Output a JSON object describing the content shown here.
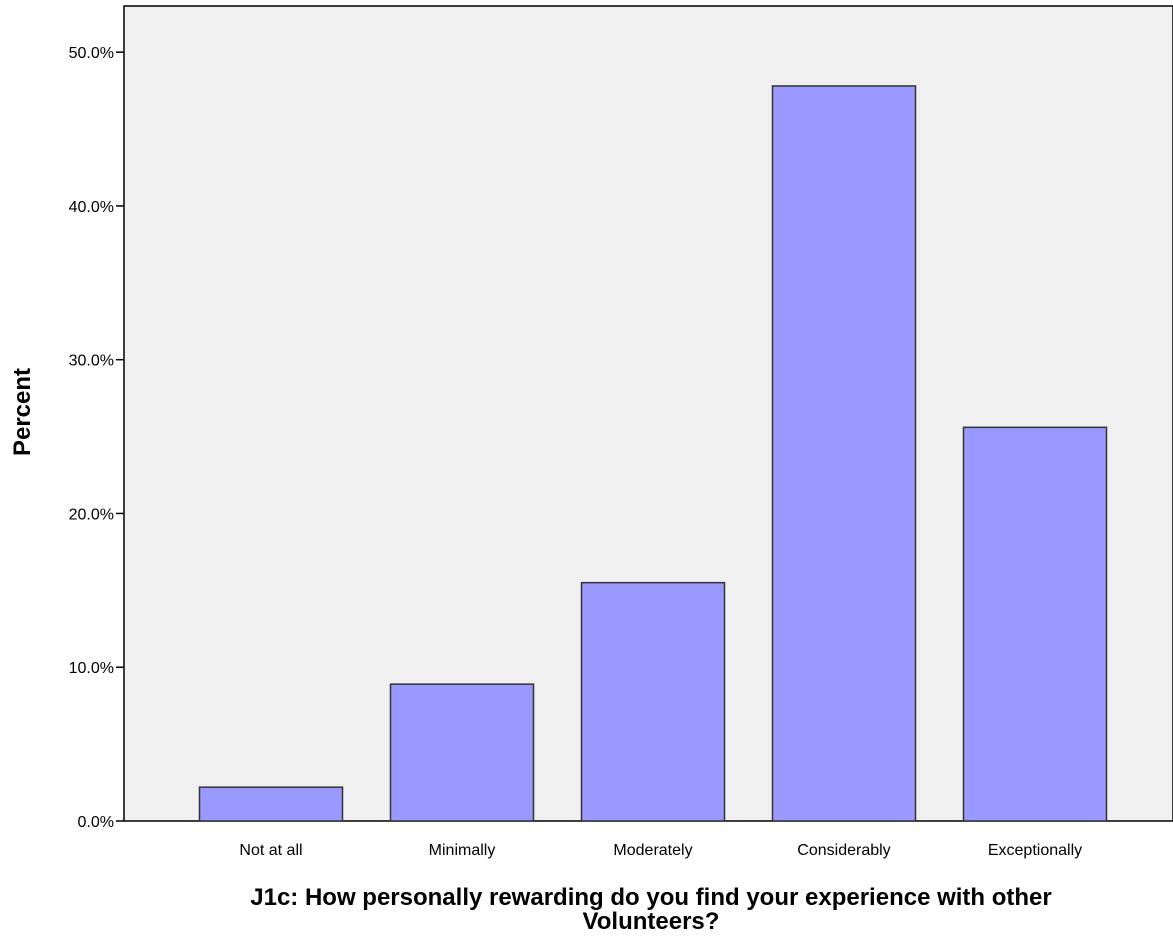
{
  "chart_data": {
    "type": "bar",
    "categories": [
      "Not at all",
      "Minimally",
      "Moderately",
      "Considerably",
      "Exceptionally"
    ],
    "values": [
      2.2,
      8.9,
      15.5,
      47.8,
      25.6
    ],
    "xlabel_lines": [
      "J1c: How personally rewarding do you find your experience with other",
      "Volunteers?"
    ],
    "ylabel": "Percent",
    "ylim": [
      0,
      53
    ],
    "y_ticks": [
      0,
      10,
      20,
      30,
      40,
      50
    ],
    "y_tick_labels": [
      "0.0%",
      "10.0%",
      "20.0%",
      "30.0%",
      "40.0%",
      "50.0%"
    ],
    "grid": false,
    "colors": {
      "plot_background": "#f0f0f0",
      "bar_fill": "#9999ff",
      "bar_stroke": "#333333",
      "axis": "#000000"
    }
  }
}
